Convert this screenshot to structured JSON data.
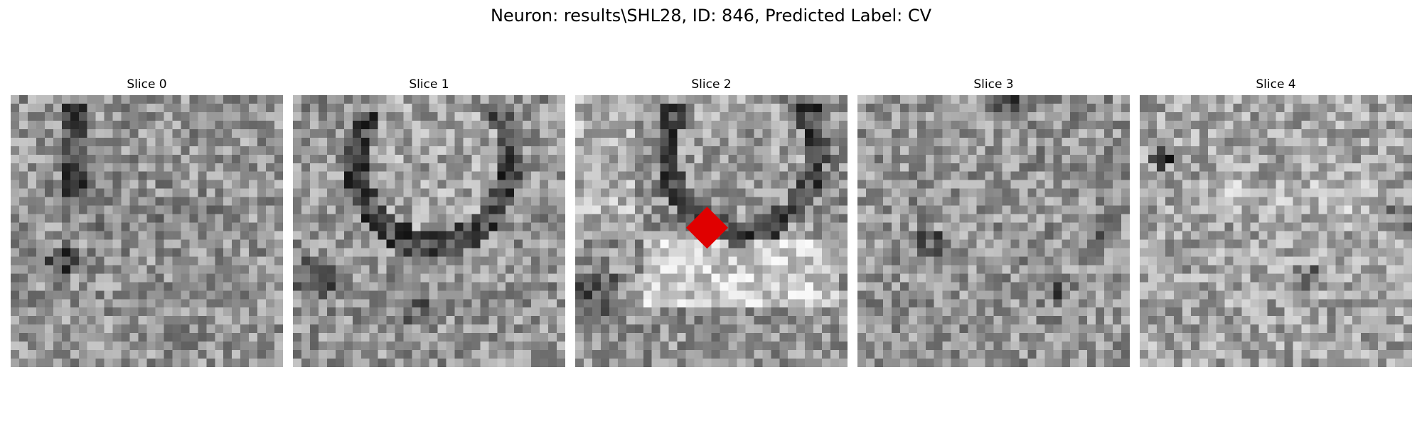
{
  "figure": {
    "title": "Neuron: results\\SHL28, ID: 846, Predicted Label: CV"
  },
  "panels": [
    {
      "label": "Slice 0",
      "icon": "grayscale-em-slice-image",
      "has_marker": false
    },
    {
      "label": "Slice 1",
      "icon": "grayscale-em-slice-image",
      "has_marker": false
    },
    {
      "label": "Slice 2",
      "icon": "grayscale-em-slice-image",
      "has_marker": true,
      "marker_shape": "diamond",
      "marker_color": "#e00000"
    },
    {
      "label": "Slice 3",
      "icon": "grayscale-em-slice-image",
      "has_marker": false
    },
    {
      "label": "Slice 4",
      "icon": "grayscale-em-slice-image",
      "has_marker": false
    }
  ],
  "colors": {
    "background": "#ffffff",
    "marker": "#e00000"
  }
}
